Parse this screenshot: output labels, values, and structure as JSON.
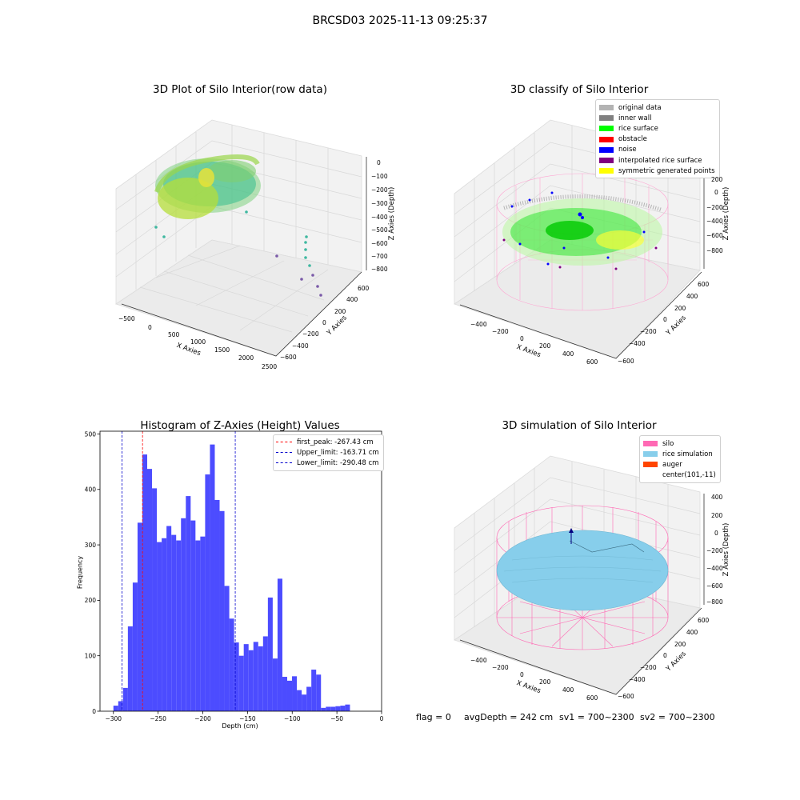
{
  "figure": {
    "suptitle": "BRCSD03 2025-11-13 09:25:37"
  },
  "panels": {
    "raw": {
      "title": "3D Plot of Silo Interior(row data)",
      "x_ticks": [
        "−500",
        "0",
        "500",
        "1000",
        "1500",
        "2000",
        "2500"
      ],
      "x_label": "X Axies",
      "y_ticks": [
        "600",
        "400",
        "200",
        "0",
        "−200",
        "−400",
        "−600"
      ],
      "y_label": "Y Axies",
      "z_ticks": [
        "0",
        "−100",
        "−200",
        "−300",
        "−400",
        "−500",
        "−600",
        "−700",
        "−800"
      ],
      "z_label": "Z Axies (Depth)"
    },
    "classify": {
      "title": "3D classify of Silo Interior",
      "legend": [
        {
          "label": "original data",
          "color": "#b3b3b3"
        },
        {
          "label": "inner wall",
          "color": "#808080"
        },
        {
          "label": "rice surface",
          "color": "#00ff00"
        },
        {
          "label": "obstacle",
          "color": "#ff0000"
        },
        {
          "label": "noise",
          "color": "#0000ff"
        },
        {
          "label": "interpolated rice surface",
          "color": "#800080"
        },
        {
          "label": "symmetric generated points",
          "color": "#ffff00"
        }
      ],
      "x_ticks": [
        "−400",
        "−200",
        "0",
        "200",
        "400",
        "600"
      ],
      "x_label": "X Axies",
      "y_ticks": [
        "600",
        "400",
        "200",
        "0",
        "−200",
        "−400",
        "−600"
      ],
      "y_label": "Y Axies",
      "z_ticks": [
        "200",
        "0",
        "−200",
        "−400",
        "−600",
        "−800"
      ],
      "z_label": "Z Axies (Depth)"
    },
    "simulation": {
      "title": "3D simulation of Silo Interior",
      "legend": [
        {
          "label": "silo",
          "color": "#ff69b4"
        },
        {
          "label": "rice simulation",
          "color": "#87ceeb"
        },
        {
          "label": "auger",
          "color": "#ff4500"
        },
        {
          "label": "center(101,-11)",
          "color": ""
        }
      ],
      "x_ticks": [
        "−400",
        "−200",
        "0",
        "200",
        "400",
        "600"
      ],
      "x_label": "X Axies",
      "y_ticks": [
        "600",
        "400",
        "200",
        "0",
        "−200",
        "−400",
        "−600"
      ],
      "y_label": "Y Axies",
      "z_ticks": [
        "400",
        "200",
        "0",
        "−200",
        "−400",
        "−600",
        "−800"
      ],
      "z_label": "Z Axies (Depth)"
    }
  },
  "status": {
    "flag": "flag = 0",
    "avg_depth": "avgDepth = 242 cm",
    "sv1": "sv1 = 700~2300",
    "sv2": "sv2 = 700~2300"
  },
  "colors": {
    "histogram_bar": "#4c4cff",
    "first_peak": "#ff0000",
    "limits": "#0000cc",
    "silo_wire": "#ff69b4",
    "rice_surface": "#87ceeb"
  },
  "chart_data": [
    {
      "type": "bar",
      "title": "Histogram of Z-Axies (Height) Values",
      "xlabel": "Depth (cm)",
      "ylabel": "Frequency",
      "xlim": [
        -315,
        0
      ],
      "ylim": [
        0,
        505
      ],
      "x_ticks": [
        -300,
        -250,
        -200,
        -150,
        -100,
        -50,
        0
      ],
      "x_tick_labels": [
        "−300",
        "−250",
        "−200",
        "−150",
        "−100",
        "−50",
        "0"
      ],
      "y_ticks": [
        0,
        100,
        200,
        300,
        400,
        500
      ],
      "y_tick_labels": [
        "0",
        "100",
        "200",
        "300",
        "400",
        "500"
      ],
      "bin_width": 5.4,
      "bin_start": -300,
      "values": [
        10,
        18,
        42,
        153,
        232,
        340,
        463,
        437,
        402,
        305,
        312,
        334,
        318,
        308,
        348,
        388,
        344,
        308,
        315,
        427,
        481,
        381,
        361,
        226,
        167,
        124,
        100,
        121,
        110,
        125,
        117,
        135,
        205,
        95,
        239,
        62,
        55,
        63,
        38,
        30,
        44,
        75,
        66,
        6,
        8,
        8,
        9,
        10,
        12
      ],
      "vlines": [
        {
          "name": "first_peak",
          "x": -267.43,
          "color": "#ff0000",
          "label": "first_peak: -267.43 cm"
        },
        {
          "name": "upper_limit",
          "x": -163.71,
          "color": "#0000cc",
          "label": "Upper_limit: -163.71 cm"
        },
        {
          "name": "lower_limit",
          "x": -290.48,
          "color": "#0000cc",
          "label": "Lower_limit: -290.48 cm"
        }
      ],
      "grid": false,
      "legend_position": "top-right"
    }
  ]
}
